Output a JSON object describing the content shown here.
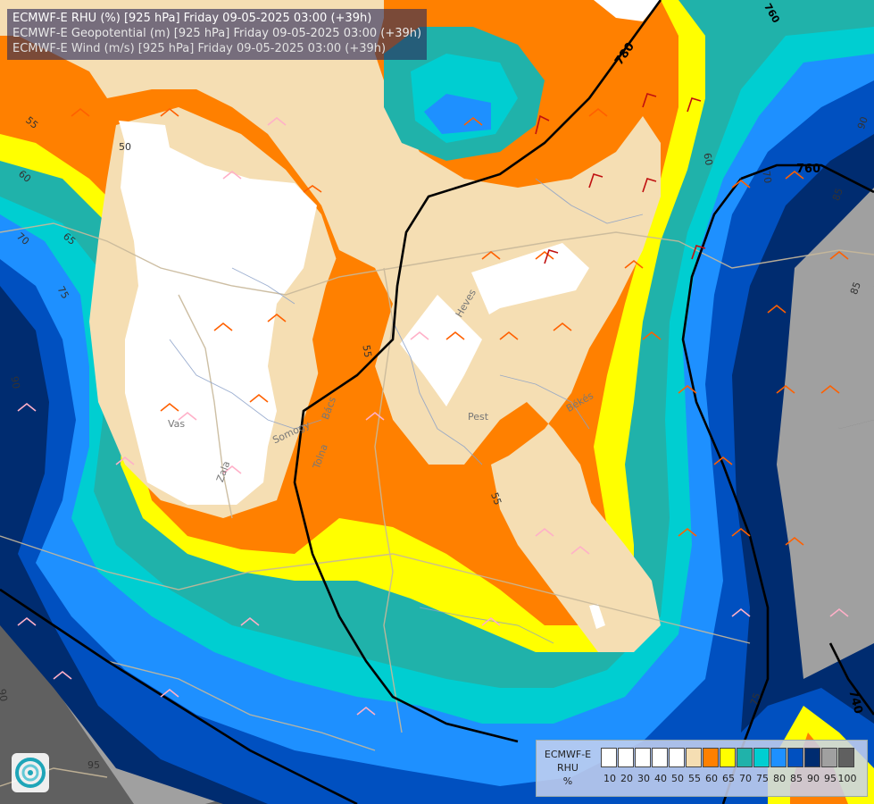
{
  "header": {
    "line1": "ECMWF-E RHU (%) [925 hPa] Friday 09-05-2025 03:00 (+39h)",
    "line2": "ECMWF-E Geopotential (m) [925 hPa] Friday 09-05-2025 03:00 (+39h)",
    "line3": "ECMWF-E Wind (m/s) [925 hPa] Friday 09-05-2025 03:00 (+39h)"
  },
  "legend": {
    "title_line1": "ECMWF-E",
    "title_line2": "RHU",
    "title_line3": "%",
    "levels": [
      "10",
      "20",
      "30",
      "40",
      "50",
      "55",
      "60",
      "65",
      "70",
      "75",
      "80",
      "85",
      "90",
      "95",
      "100"
    ],
    "colors": [
      "#ffffff",
      "#ffffff",
      "#ffffff",
      "#ffffff",
      "#ffffff",
      "#f5deb3",
      "#ff8000",
      "#ffff00",
      "#20b2aa",
      "#00ced1",
      "#1e90ff",
      "#0050c0",
      "#002c70",
      "#a0a0a0",
      "#606060"
    ]
  },
  "map_labels": {
    "geopotential": [
      "780",
      "760",
      "740",
      "760"
    ],
    "rhu": [
      "50",
      "55",
      "60",
      "65",
      "70",
      "75",
      "90",
      "55",
      "55",
      "60",
      "70",
      "85",
      "90",
      "75",
      "85",
      "95",
      "90"
    ],
    "places": [
      "Vas",
      "Zala",
      "Somogy",
      "Tolna",
      "Pest",
      "Heves",
      "Békés",
      "Bács"
    ]
  },
  "colors": {
    "rhu_white": "#ffffff",
    "rhu_55": "#f5deb3",
    "rhu_60": "#ff8000",
    "rhu_65": "#ffff00",
    "rhu_70": "#20b2aa",
    "rhu_75": "#00ced1",
    "rhu_80": "#1e90ff",
    "rhu_85": "#0050c0",
    "rhu_90": "#002c70",
    "rhu_95": "#a0a0a0",
    "rhu_100": "#606060",
    "contour": "#000000",
    "border": "#c8b89a",
    "river": "#8aa0c8"
  }
}
